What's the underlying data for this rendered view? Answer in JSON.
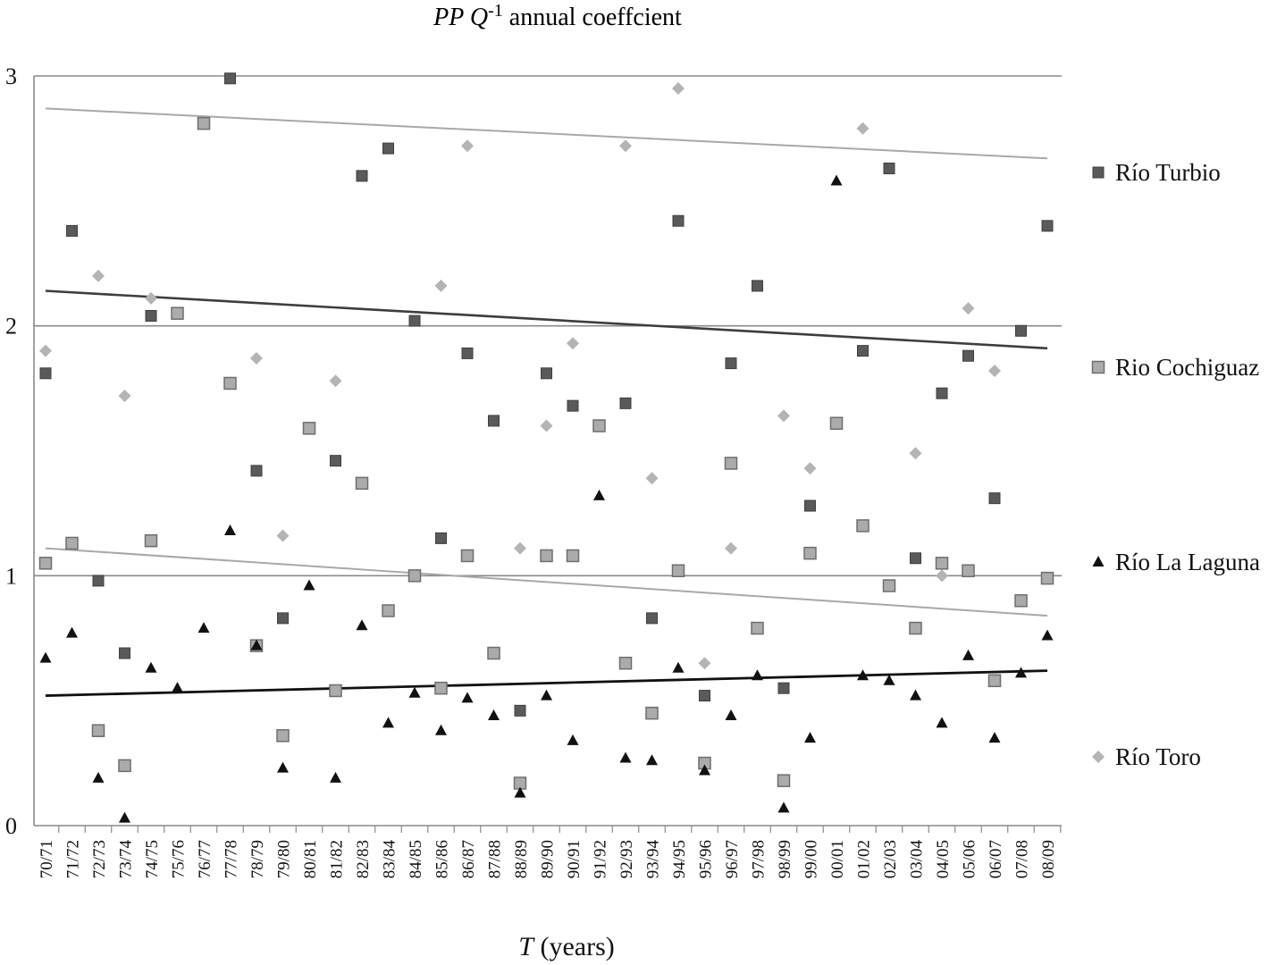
{
  "chart_data": {
    "type": "scatter",
    "title": {
      "var": "PP Q",
      "sup": "-1",
      "rest": " annual coeffcient"
    },
    "xlabel": {
      "var": "T",
      "rest": " (years)"
    },
    "ylabel": "",
    "ylim": [
      0,
      3
    ],
    "yticks": [
      "0",
      "1",
      "2",
      "3"
    ],
    "gridlines": [
      1,
      2,
      3
    ],
    "legend_position": "right",
    "categories": [
      "70/71",
      "71/72",
      "72/73",
      "73/74",
      "74/75",
      "75/76",
      "76/77",
      "77/78",
      "78/79",
      "79/80",
      "80/81",
      "81/82",
      "82/83",
      "83/84",
      "84/85",
      "85/86",
      "86/87",
      "87/88",
      "88/89",
      "89/90",
      "90/91",
      "91/92",
      "92/93",
      "93/94",
      "94/95",
      "95/96",
      "96/97",
      "97/98",
      "98/99",
      "99/00",
      "00/01",
      "01/02",
      "02/03",
      "03/04",
      "04/05",
      "05/06",
      "06/07",
      "07/08",
      "08/09"
    ],
    "series": [
      {
        "name": "Río Turbio",
        "marker": "square",
        "color": "#5a5a5a",
        "points": [
          [
            0,
            1.81
          ],
          [
            1,
            2.38
          ],
          [
            2,
            0.98
          ],
          [
            3,
            0.69
          ],
          [
            4,
            2.04
          ],
          [
            7,
            2.99
          ],
          [
            8,
            1.42
          ],
          [
            9,
            0.83
          ],
          [
            11,
            1.46
          ],
          [
            12,
            2.6
          ],
          [
            13,
            2.71
          ],
          [
            14,
            2.02
          ],
          [
            15,
            1.15
          ],
          [
            16,
            1.89
          ],
          [
            17,
            1.62
          ],
          [
            18,
            0.46
          ],
          [
            19,
            1.81
          ],
          [
            20,
            1.68
          ],
          [
            22,
            1.69
          ],
          [
            23,
            0.83
          ],
          [
            24,
            2.42
          ],
          [
            25,
            0.52
          ],
          [
            26,
            1.85
          ],
          [
            27,
            2.16
          ],
          [
            28,
            0.55
          ],
          [
            29,
            1.28
          ],
          [
            31,
            1.9
          ],
          [
            32,
            2.63
          ],
          [
            33,
            1.07
          ],
          [
            34,
            1.73
          ],
          [
            35,
            1.88
          ],
          [
            36,
            1.31
          ],
          [
            37,
            1.98
          ],
          [
            38,
            2.4
          ]
        ],
        "trend": [
          2.14,
          1.91
        ]
      },
      {
        "name": "Rio Cochiguaz",
        "marker": "square-open",
        "color": "#ababab",
        "points": [
          [
            0,
            1.05
          ],
          [
            1,
            1.13
          ],
          [
            2,
            0.38
          ],
          [
            3,
            0.24
          ],
          [
            4,
            1.14
          ],
          [
            5,
            2.05
          ],
          [
            6,
            2.81
          ],
          [
            7,
            1.77
          ],
          [
            8,
            0.72
          ],
          [
            9,
            0.36
          ],
          [
            10,
            1.59
          ],
          [
            11,
            0.54
          ],
          [
            12,
            1.37
          ],
          [
            13,
            0.86
          ],
          [
            14,
            1.0
          ],
          [
            15,
            0.55
          ],
          [
            16,
            1.08
          ],
          [
            17,
            0.69
          ],
          [
            18,
            0.17
          ],
          [
            19,
            1.08
          ],
          [
            20,
            1.08
          ],
          [
            21,
            1.6
          ],
          [
            22,
            0.65
          ],
          [
            23,
            0.45
          ],
          [
            24,
            1.02
          ],
          [
            25,
            0.25
          ],
          [
            26,
            1.45
          ],
          [
            27,
            0.79
          ],
          [
            28,
            0.18
          ],
          [
            29,
            1.09
          ],
          [
            30,
            1.61
          ],
          [
            31,
            1.2
          ],
          [
            32,
            0.96
          ],
          [
            33,
            0.79
          ],
          [
            34,
            1.05
          ],
          [
            35,
            1.02
          ],
          [
            36,
            0.58
          ],
          [
            37,
            0.9
          ],
          [
            38,
            0.99
          ]
        ],
        "trend": [
          1.11,
          0.84
        ]
      },
      {
        "name": "Río La Laguna",
        "marker": "triangle",
        "color": "#111111",
        "points": [
          [
            0,
            0.67
          ],
          [
            1,
            0.77
          ],
          [
            2,
            0.19
          ],
          [
            3,
            0.03
          ],
          [
            4,
            0.63
          ],
          [
            5,
            0.55
          ],
          [
            6,
            0.79
          ],
          [
            7,
            1.18
          ],
          [
            8,
            0.72
          ],
          [
            9,
            0.23
          ],
          [
            10,
            0.96
          ],
          [
            11,
            0.19
          ],
          [
            12,
            0.8
          ],
          [
            13,
            0.41
          ],
          [
            14,
            0.53
          ],
          [
            15,
            0.38
          ],
          [
            16,
            0.51
          ],
          [
            17,
            0.44
          ],
          [
            18,
            0.13
          ],
          [
            19,
            0.52
          ],
          [
            20,
            0.34
          ],
          [
            21,
            1.32
          ],
          [
            22,
            0.27
          ],
          [
            23,
            0.26
          ],
          [
            24,
            0.63
          ],
          [
            25,
            0.22
          ],
          [
            26,
            0.44
          ],
          [
            27,
            0.6
          ],
          [
            28,
            0.07
          ],
          [
            29,
            0.35
          ],
          [
            30,
            2.58
          ],
          [
            31,
            0.6
          ],
          [
            32,
            0.58
          ],
          [
            33,
            0.52
          ],
          [
            34,
            0.41
          ],
          [
            35,
            0.68
          ],
          [
            36,
            0.35
          ],
          [
            37,
            0.61
          ],
          [
            38,
            0.76
          ]
        ],
        "trend": [
          0.52,
          0.62
        ]
      },
      {
        "name": "Río Toro",
        "marker": "diamond",
        "color": "#b4b4b4",
        "points": [
          [
            0,
            1.9
          ],
          [
            2,
            2.2
          ],
          [
            3,
            1.72
          ],
          [
            4,
            2.11
          ],
          [
            8,
            1.87
          ],
          [
            9,
            1.16
          ],
          [
            11,
            1.78
          ],
          [
            16,
            2.72
          ],
          [
            15,
            2.16
          ],
          [
            18,
            1.11
          ],
          [
            19,
            1.6
          ],
          [
            20,
            1.93
          ],
          [
            22,
            2.72
          ],
          [
            23,
            1.39
          ],
          [
            24,
            2.95
          ],
          [
            25,
            0.65
          ],
          [
            26,
            1.11
          ],
          [
            28,
            1.64
          ],
          [
            29,
            1.43
          ],
          [
            31,
            2.79
          ],
          [
            33,
            1.49
          ],
          [
            34,
            1.0
          ],
          [
            35,
            2.07
          ],
          [
            36,
            1.82
          ]
        ],
        "trend": [
          2.87,
          2.67
        ]
      }
    ]
  }
}
